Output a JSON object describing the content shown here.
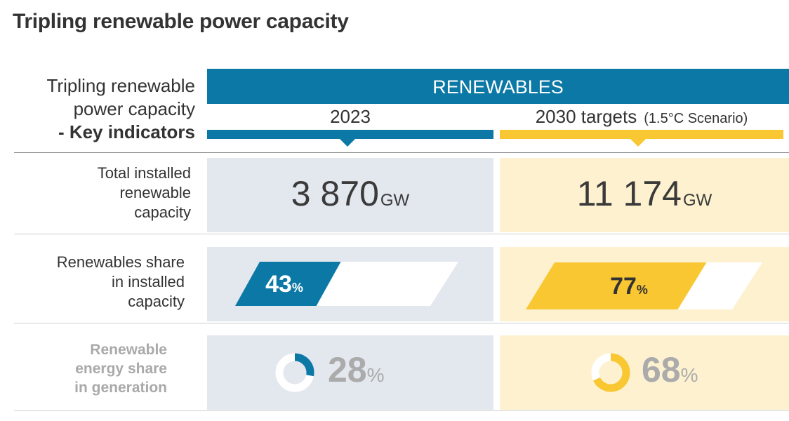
{
  "title": "Tripling renewable power capacity",
  "side_title": {
    "line1": "Tripling renewable",
    "line2": "power capacity",
    "line3": "- Key indicators"
  },
  "banner": "RENEWABLES",
  "columns": {
    "year_2023": "2023",
    "targets_2030": "2030 targets",
    "scenario": "(1.5°C Scenario)"
  },
  "rows": {
    "capacity": {
      "label": [
        "Total installed",
        "renewable",
        "capacity"
      ],
      "value_2023": "3 870",
      "value_2030": "11 174",
      "unit": "GW"
    },
    "share_installed": {
      "label": [
        "Renewables share",
        "in installed",
        "capacity"
      ],
      "value_2023": "43",
      "value_2030": "77",
      "unit": "%",
      "fraction_2023": 0.43,
      "fraction_2030": 0.77
    },
    "share_generation": {
      "label": [
        "Renewable",
        "energy share",
        "in generation"
      ],
      "value_2023": "28",
      "value_2030": "68",
      "unit": "%",
      "fraction_2023": 0.28,
      "fraction_2030": 0.68
    }
  },
  "colors": {
    "blue": "#0b78a5",
    "yellow": "#f8c731",
    "blue_cell": "#e3e7ee",
    "yellow_cell": "#fdf1d0",
    "ring_track": "#ffffff"
  }
}
